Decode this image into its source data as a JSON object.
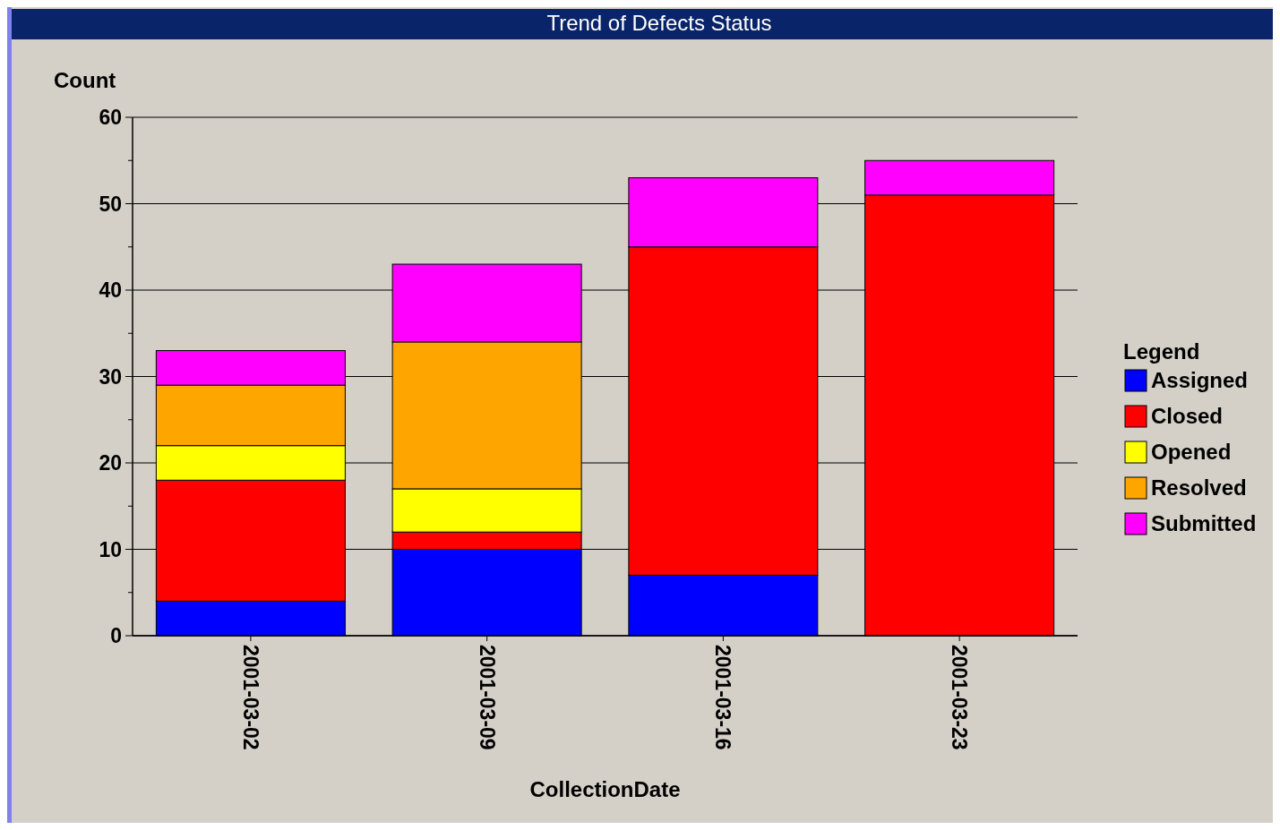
{
  "chart_data": {
    "type": "bar",
    "stacked": true,
    "title": "Trend of Defects Status",
    "xlabel": "CollectionDate",
    "ylabel": "Count",
    "legend_title": "Legend",
    "legend": "right",
    "grid": "y",
    "categories": [
      "2001-03-02",
      "2001-03-09",
      "2001-03-16",
      "2001-03-23"
    ],
    "series": [
      {
        "name": "Assigned",
        "color": "#0000ff",
        "values": [
          4,
          10,
          7,
          0
        ]
      },
      {
        "name": "Closed",
        "color": "#ff0000",
        "values": [
          14,
          2,
          38,
          51
        ]
      },
      {
        "name": "Opened",
        "color": "#ffff00",
        "values": [
          4,
          5,
          0,
          0
        ]
      },
      {
        "name": "Resolved",
        "color": "#ffa500",
        "values": [
          7,
          17,
          0,
          0
        ]
      },
      {
        "name": "Submitted",
        "color": "#ff00ff",
        "values": [
          4,
          9,
          8,
          4
        ]
      }
    ],
    "ylim": [
      0,
      60
    ],
    "yticks": [
      0,
      {
        "value": 5,
        "label": null
      },
      10,
      {
        "value": 15,
        "label": null
      },
      20,
      {
        "value": 25,
        "label": null
      },
      30,
      {
        "value": 35,
        "label": null
      },
      40,
      {
        "value": 45,
        "label": null
      },
      50,
      {
        "value": 55,
        "label": null
      },
      60
    ]
  }
}
